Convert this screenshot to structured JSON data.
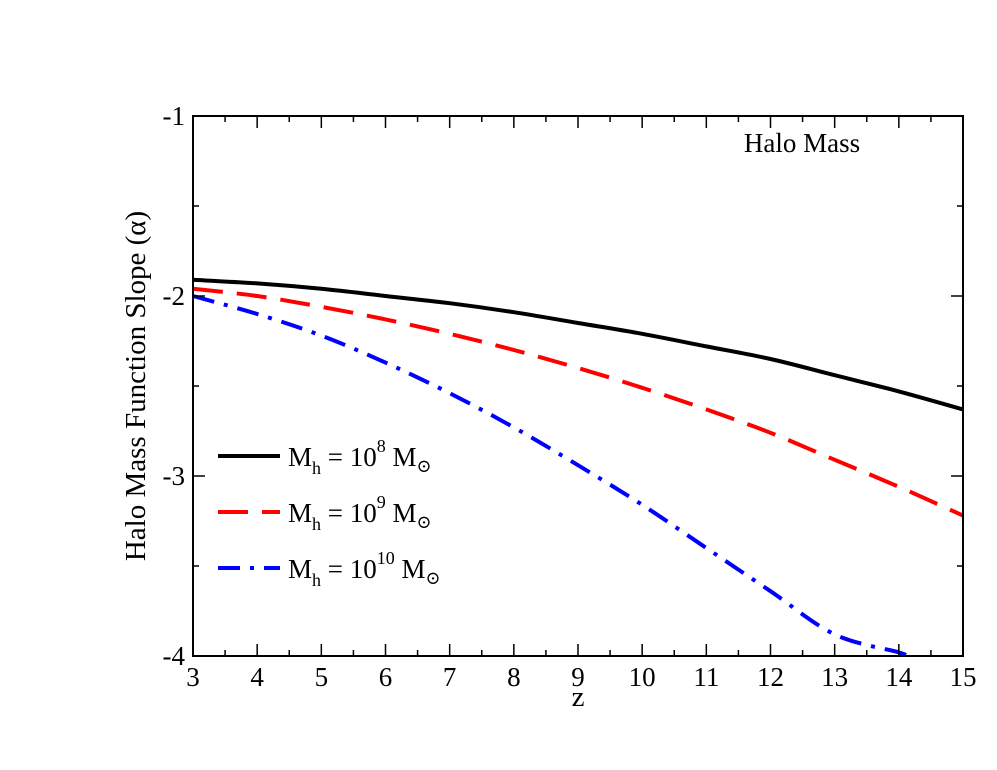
{
  "chart_data": {
    "type": "line",
    "title": "",
    "xlabel": "z",
    "ylabel": "Halo Mass Function Slope (α)",
    "annotation": "Halo Mass",
    "xlim": [
      3,
      15
    ],
    "ylim": [
      -4,
      -1
    ],
    "xticks": [
      3,
      4,
      5,
      6,
      7,
      8,
      9,
      10,
      11,
      12,
      13,
      14,
      15
    ],
    "yticks": [
      -4,
      -3,
      -2,
      -1
    ],
    "xtick_labels": [
      "3",
      "4",
      "5",
      "6",
      "7",
      "8",
      "9",
      "10",
      "11",
      "12",
      "13",
      "14",
      "15"
    ],
    "ytick_labels": [
      "-4",
      "-3",
      "-2",
      "-1"
    ],
    "legend_position": "lower-left",
    "grid": false,
    "series": [
      {
        "name": "M_h = 10^8 M_⊙",
        "legend": {
          "main": "M",
          "sub": "h",
          "eq": " = 10",
          "exp": "8",
          "unit": " M",
          "sun": "⊙"
        },
        "color": "#000000",
        "dash": "solid",
        "x": [
          3,
          4,
          5,
          6,
          7,
          8,
          9,
          10,
          11,
          12,
          13,
          14,
          15
        ],
        "y": [
          -1.91,
          -1.93,
          -1.96,
          -2.0,
          -2.04,
          -2.09,
          -2.15,
          -2.21,
          -2.28,
          -2.35,
          -2.44,
          -2.53,
          -2.63
        ]
      },
      {
        "name": "M_h = 10^9 M_⊙",
        "legend": {
          "main": "M",
          "sub": "h",
          "eq": " = 10",
          "exp": "9",
          "unit": " M",
          "sun": "⊙"
        },
        "color": "#ff0000",
        "dash": "dashed",
        "x": [
          3,
          4,
          5,
          6,
          7,
          8,
          9,
          10,
          11,
          12,
          13,
          14,
          15
        ],
        "y": [
          -1.96,
          -2.0,
          -2.06,
          -2.13,
          -2.21,
          -2.3,
          -2.4,
          -2.51,
          -2.63,
          -2.76,
          -2.91,
          -3.06,
          -3.22
        ]
      },
      {
        "name": "M_h = 10^10 M_⊙",
        "legend": {
          "main": "M",
          "sub": "h",
          "eq": " = 10",
          "exp": "10",
          "unit": " M",
          "sun": "⊙"
        },
        "color": "#0000ff",
        "dash": "dashdot",
        "x": [
          3,
          4,
          5,
          6,
          7,
          8,
          9,
          10,
          11,
          12,
          13,
          14,
          14.1
        ],
        "y": [
          -2.0,
          -2.1,
          -2.22,
          -2.37,
          -2.54,
          -2.73,
          -2.94,
          -3.16,
          -3.4,
          -3.64,
          -3.88,
          -3.98,
          -4.0
        ]
      }
    ]
  }
}
